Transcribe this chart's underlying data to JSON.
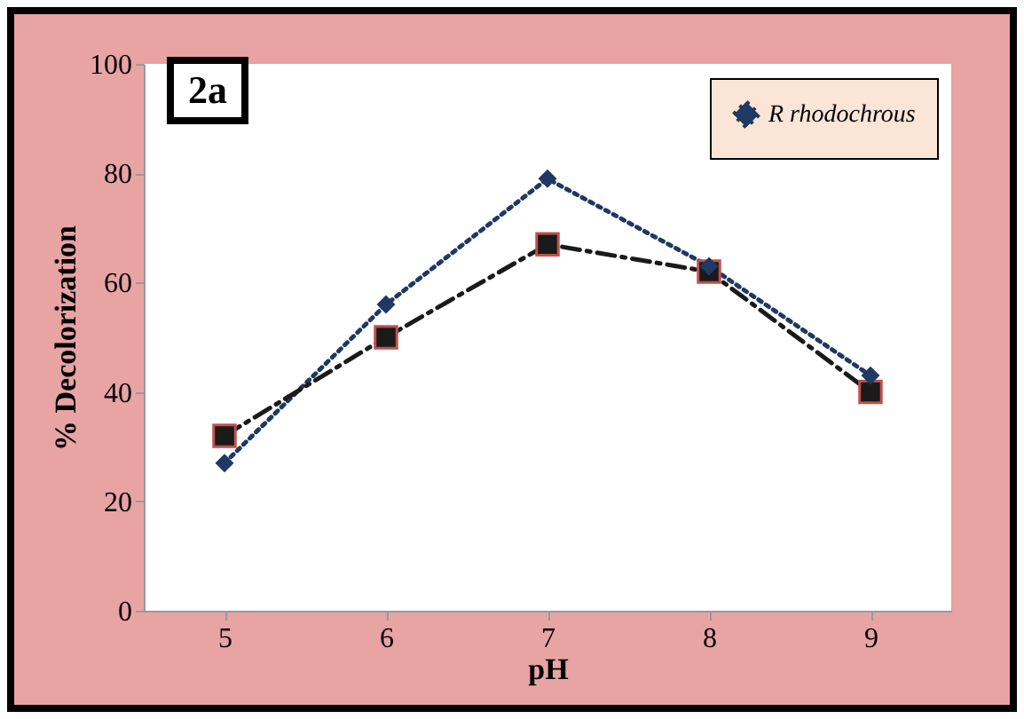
{
  "chart_data": {
    "type": "line",
    "xlabel": "pH",
    "ylabel": "% Decolorization",
    "annotations": [
      "2a"
    ],
    "categories": [
      "5",
      "6",
      "7",
      "8",
      "9"
    ],
    "ylim": [
      0,
      100
    ],
    "yticks": [
      0,
      20,
      40,
      60,
      80,
      100
    ],
    "grid": false,
    "legend": "top right",
    "series": [
      {
        "name": "R rhodochrous",
        "color": "#1f3864",
        "marker": "diamond",
        "line_style": "dotted",
        "values": [
          27,
          56,
          79,
          63,
          43
        ]
      },
      {
        "color": "#1a1a1a",
        "marker": "square",
        "line_style": "dashed",
        "values": [
          32,
          50,
          67,
          62,
          40
        ]
      }
    ]
  }
}
